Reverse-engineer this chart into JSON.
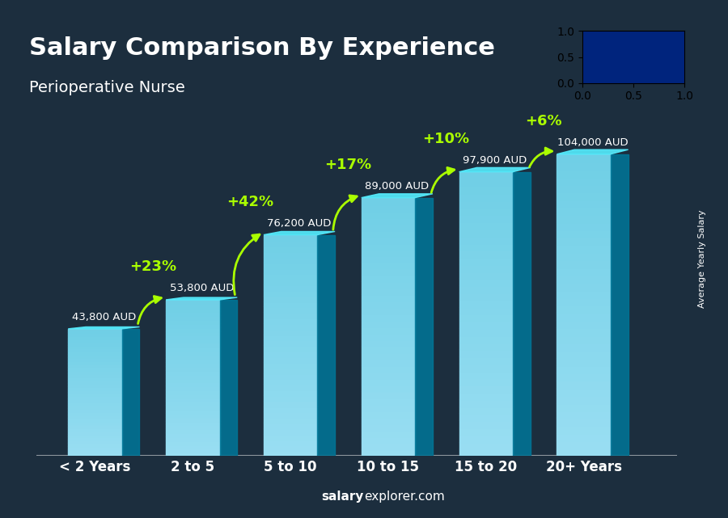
{
  "title": "Salary Comparison By Experience",
  "subtitle": "Perioperative Nurse",
  "ylabel_rotated": "Average Yearly Salary",
  "xlabel_source": "salaryexplorer.com",
  "categories": [
    "< 2 Years",
    "2 to 5",
    "5 to 10",
    "10 to 15",
    "15 to 20",
    "20+ Years"
  ],
  "values": [
    43800,
    53800,
    76200,
    89000,
    97900,
    104000
  ],
  "value_labels": [
    "43,800 AUD",
    "53,800 AUD",
    "76,200 AUD",
    "89,000 AUD",
    "97,900 AUD",
    "104,000 AUD"
  ],
  "pct_labels": [
    "+23%",
    "+42%",
    "+17%",
    "+10%",
    "+6%"
  ],
  "bar_color_top": "#00d4f5",
  "bar_color_mid": "#00aacc",
  "bar_color_bottom": "#0088aa",
  "bar_color_side": "#006688",
  "bg_color": "#1a2a3a",
  "title_color": "#ffffff",
  "subtitle_color": "#ffffff",
  "value_color": "#ffffff",
  "pct_color": "#aaff00",
  "source_bold": "salary",
  "source_normal": "explorer.com",
  "source_color": "#ffffff",
  "ylim": [
    0,
    125000
  ],
  "figsize": [
    9.0,
    6.41
  ]
}
